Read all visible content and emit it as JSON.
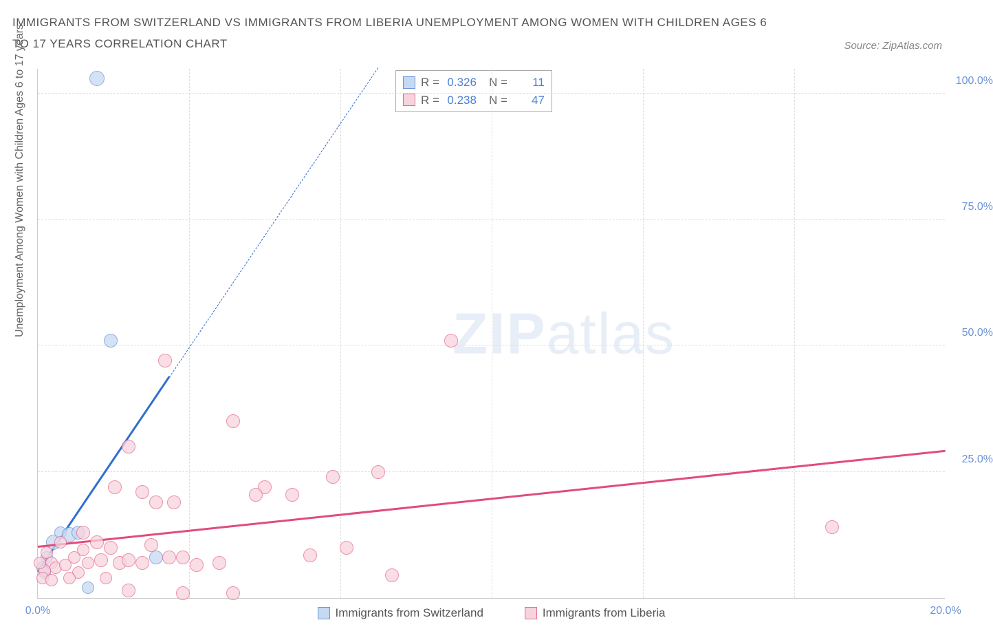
{
  "title": "IMMIGRANTS FROM SWITZERLAND VS IMMIGRANTS FROM LIBERIA UNEMPLOYMENT AMONG WOMEN WITH CHILDREN AGES 6 TO 17 YEARS CORRELATION CHART",
  "source_label": "Source: ZipAtlas.com",
  "y_axis_label": "Unemployment Among Women with Children Ages 6 to 17 years",
  "watermark_bold": "ZIP",
  "watermark_light": "atlas",
  "chart": {
    "type": "scatter",
    "xlim": [
      0,
      20
    ],
    "ylim": [
      0,
      105
    ],
    "x_ticks": [
      0,
      20
    ],
    "x_tick_labels": [
      "0.0%",
      "20.0%"
    ],
    "y_ticks": [
      25,
      50,
      75,
      100
    ],
    "y_tick_labels": [
      "25.0%",
      "50.0%",
      "75.0%",
      "100.0%"
    ],
    "x_grid": [
      3.33,
      6.66,
      10,
      13.33,
      16.66
    ],
    "tick_color": "#6b93d6",
    "background_color": "#ffffff",
    "grid_color": "#dddddd",
    "axis_color": "#cccccc"
  },
  "series": [
    {
      "name": "Immigrants from Switzerland",
      "color_fill": "#c6d9f2",
      "color_stroke": "#6b93d6",
      "marker_radius": 9,
      "r_label": "R =",
      "r_value": "0.326",
      "n_label": "N =",
      "n_value": "11",
      "trend": {
        "x1": 0,
        "y1": 5,
        "x2": 7.5,
        "y2": 105,
        "color": "#2f6fd0",
        "solid_until_x": 2.9
      },
      "points": [
        {
          "x": 1.3,
          "y": 103,
          "r": 11
        },
        {
          "x": 1.6,
          "y": 51,
          "r": 10
        },
        {
          "x": 0.1,
          "y": 6,
          "r": 9
        },
        {
          "x": 0.15,
          "y": 5,
          "r": 9
        },
        {
          "x": 0.35,
          "y": 11,
          "r": 11
        },
        {
          "x": 0.5,
          "y": 13,
          "r": 9
        },
        {
          "x": 0.7,
          "y": 12.5,
          "r": 11
        },
        {
          "x": 0.9,
          "y": 13,
          "r": 10
        },
        {
          "x": 1.1,
          "y": 2,
          "r": 9
        },
        {
          "x": 2.6,
          "y": 8,
          "r": 10
        },
        {
          "x": 0.2,
          "y": 8,
          "r": 9
        }
      ]
    },
    {
      "name": "Immigrants from Liberia",
      "color_fill": "#f7d4dd",
      "color_stroke": "#e56b8f",
      "marker_radius": 9,
      "r_label": "R =",
      "r_value": "0.238",
      "n_label": "N =",
      "n_value": "47",
      "trend": {
        "x1": 0,
        "y1": 10,
        "x2": 20,
        "y2": 29,
        "color": "#e04c7b",
        "solid_until_x": 20
      },
      "points": [
        {
          "x": 2.8,
          "y": 47,
          "r": 10
        },
        {
          "x": 9.1,
          "y": 51,
          "r": 10
        },
        {
          "x": 4.3,
          "y": 35,
          "r": 10
        },
        {
          "x": 2.0,
          "y": 30,
          "r": 10
        },
        {
          "x": 7.5,
          "y": 25,
          "r": 10
        },
        {
          "x": 6.5,
          "y": 24,
          "r": 10
        },
        {
          "x": 5.0,
          "y": 22,
          "r": 10
        },
        {
          "x": 5.6,
          "y": 20.5,
          "r": 10
        },
        {
          "x": 4.8,
          "y": 20.5,
          "r": 10
        },
        {
          "x": 2.3,
          "y": 21,
          "r": 10
        },
        {
          "x": 1.7,
          "y": 22,
          "r": 10
        },
        {
          "x": 3.0,
          "y": 19,
          "r": 10
        },
        {
          "x": 2.6,
          "y": 19,
          "r": 10
        },
        {
          "x": 17.5,
          "y": 14,
          "r": 10
        },
        {
          "x": 1.0,
          "y": 13,
          "r": 10
        },
        {
          "x": 1.3,
          "y": 11,
          "r": 10
        },
        {
          "x": 1.6,
          "y": 10,
          "r": 10
        },
        {
          "x": 0.2,
          "y": 9,
          "r": 9
        },
        {
          "x": 0.3,
          "y": 7,
          "r": 9
        },
        {
          "x": 0.4,
          "y": 6,
          "r": 9
        },
        {
          "x": 0.15,
          "y": 5.5,
          "r": 9
        },
        {
          "x": 0.6,
          "y": 6.5,
          "r": 9
        },
        {
          "x": 0.8,
          "y": 8,
          "r": 9
        },
        {
          "x": 0.9,
          "y": 5,
          "r": 9
        },
        {
          "x": 1.1,
          "y": 7,
          "r": 9
        },
        {
          "x": 1.4,
          "y": 7.5,
          "r": 10
        },
        {
          "x": 1.8,
          "y": 7,
          "r": 10
        },
        {
          "x": 2.0,
          "y": 7.5,
          "r": 10
        },
        {
          "x": 2.3,
          "y": 7,
          "r": 10
        },
        {
          "x": 2.9,
          "y": 8,
          "r": 10
        },
        {
          "x": 3.2,
          "y": 8,
          "r": 10
        },
        {
          "x": 3.5,
          "y": 6.5,
          "r": 10
        },
        {
          "x": 4.0,
          "y": 7,
          "r": 10
        },
        {
          "x": 6.8,
          "y": 10,
          "r": 10
        },
        {
          "x": 7.8,
          "y": 4.5,
          "r": 10
        },
        {
          "x": 4.3,
          "y": 1,
          "r": 10
        },
        {
          "x": 3.2,
          "y": 1,
          "r": 10
        },
        {
          "x": 2.0,
          "y": 1.5,
          "r": 10
        },
        {
          "x": 0.5,
          "y": 11,
          "r": 9
        },
        {
          "x": 0.05,
          "y": 7,
          "r": 9
        },
        {
          "x": 0.1,
          "y": 4,
          "r": 9
        },
        {
          "x": 0.3,
          "y": 3.5,
          "r": 9
        },
        {
          "x": 1.5,
          "y": 4,
          "r": 9
        },
        {
          "x": 6.0,
          "y": 8.5,
          "r": 10
        },
        {
          "x": 1.0,
          "y": 9.5,
          "r": 9
        },
        {
          "x": 2.5,
          "y": 10.5,
          "r": 10
        },
        {
          "x": 0.7,
          "y": 4,
          "r": 9
        }
      ]
    }
  ]
}
